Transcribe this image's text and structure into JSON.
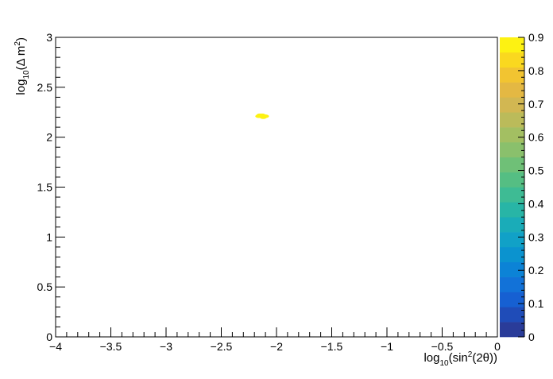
{
  "chart_data": {
    "type": "heatmap",
    "xlabel": {
      "prefix": "log",
      "sub": "10",
      "mid": "(sin",
      "sup": "2",
      "suffix": "(2θ))"
    },
    "ylabel": {
      "prefix": "log",
      "sub": "10",
      "mid": "(Δ m",
      "sup": "2",
      "suffix": ")"
    },
    "xlim": [
      -4,
      0
    ],
    "ylim": [
      0,
      3
    ],
    "x_ticks": [
      -4,
      -3.5,
      -3,
      -2.5,
      -2,
      -1.5,
      -1,
      -0.5,
      0
    ],
    "x_tick_labels": [
      "−4",
      "−3.5",
      "−3",
      "−2.5",
      "−2",
      "−1.5",
      "−1",
      "−0.5",
      "0"
    ],
    "y_ticks": [
      0,
      0.5,
      1,
      1.5,
      2,
      2.5,
      3
    ],
    "y_tick_labels": [
      "0",
      "0.5",
      "1",
      "1.5",
      "2",
      "2.5",
      "3"
    ],
    "z_range": [
      0,
      0.9
    ],
    "z_ticks": [
      0,
      0.1,
      0.2,
      0.3,
      0.4,
      0.5,
      0.6,
      0.7,
      0.8,
      0.9
    ],
    "z_tick_labels": [
      "0",
      "0.1",
      "0.2",
      "0.3",
      "0.4",
      "0.5",
      "0.6",
      "0.7",
      "0.8",
      "0.9"
    ],
    "palette": [
      "#2a3c99",
      "#1f4cb8",
      "#1660d2",
      "#1272d8",
      "#0c83d6",
      "#0b93cf",
      "#11a1c7",
      "#1aacb8",
      "#28b5a6",
      "#3ebb94",
      "#55be83",
      "#6fc077",
      "#8ac06c",
      "#a3bf62",
      "#bbbb5a",
      "#d2b752",
      "#e4b843",
      "#f2c431",
      "#fad81f",
      "#fdf212"
    ],
    "points": [
      {
        "x": -2.15,
        "y": 2.22,
        "z": 0.9
      },
      {
        "x": -2.13,
        "y": 2.22,
        "z": 0.9
      },
      {
        "x": -2.11,
        "y": 2.21,
        "z": 0.9
      },
      {
        "x": -2.16,
        "y": 2.21,
        "z": 0.9
      },
      {
        "x": -2.12,
        "y": 2.2,
        "z": 0.9
      },
      {
        "x": -2.1,
        "y": 2.21,
        "z": 0.9
      }
    ]
  }
}
